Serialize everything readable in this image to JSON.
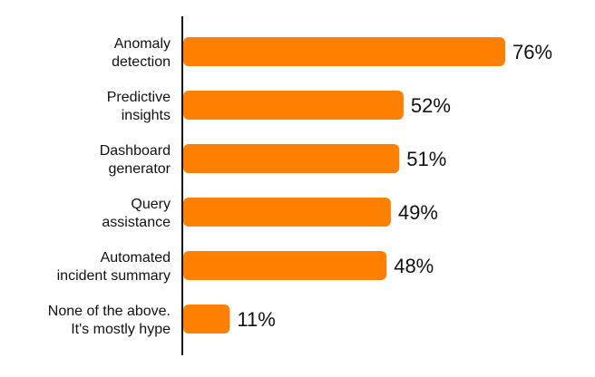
{
  "chart_data": {
    "type": "bar",
    "orientation": "horizontal",
    "categories": [
      [
        "Anomaly",
        "detection"
      ],
      [
        "Predictive",
        "insights"
      ],
      [
        "Dashboard",
        "generator"
      ],
      [
        "Query",
        "assistance"
      ],
      [
        "Automated",
        "incident summary"
      ],
      [
        "None of the above.",
        "It's mostly hype"
      ]
    ],
    "values": [
      76,
      52,
      51,
      49,
      48,
      11
    ],
    "value_labels": [
      "76%",
      "52%",
      "51%",
      "49%",
      "48%",
      "11%"
    ],
    "xlim": [
      0,
      100
    ],
    "bar_color": "#FF7F00",
    "axis_color": "#111111",
    "grid": false,
    "legend": "none"
  }
}
